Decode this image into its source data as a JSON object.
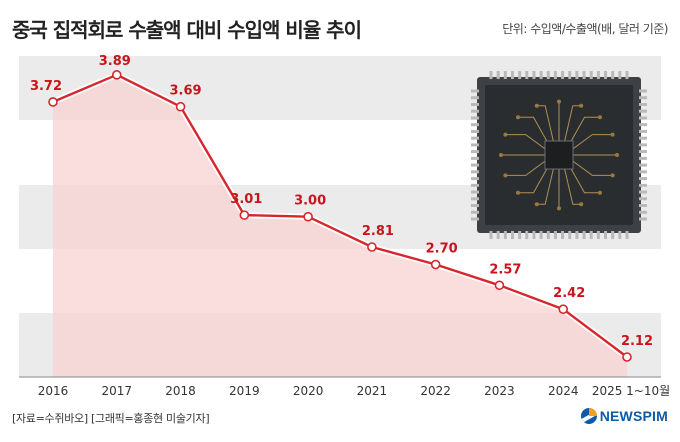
{
  "header": {
    "title": "중국 집적회로 수출액 대비 수입액 비율 추이",
    "unit": "단위: 수입액/수출액(배, 달러 기준)"
  },
  "footer": {
    "source": "[자료=수쥐바오] [그래픽=홍종현 미술기자]",
    "logo_text": "NEWSPIM"
  },
  "colors": {
    "line": "#d7262c",
    "area": "#f8d3d3",
    "band": "#ebebeb",
    "label": "#c8151b",
    "axis": "#888888",
    "chip_body": "#2a2d30",
    "pin": "#b9b9b9"
  },
  "chart_data": {
    "type": "area",
    "title": "중국 집적회로 수출액 대비 수입액 비율 추이",
    "ylabel": "단위: 수입액/수출액(배, 달러 기준)",
    "xlabel": "",
    "categories": [
      "2016",
      "2017",
      "2018",
      "2019",
      "2020",
      "2021",
      "2022",
      "2023",
      "2024",
      "2025 1~10월"
    ],
    "values": [
      3.72,
      3.89,
      3.69,
      3.01,
      3.0,
      2.81,
      2.7,
      2.57,
      2.42,
      2.12
    ],
    "data_labels": [
      "3.72",
      "3.89",
      "3.69",
      "3.01",
      "3.00",
      "2.81",
      "2.70",
      "2.57",
      "2.42",
      "2.12"
    ],
    "ylim": [
      2.0,
      4.0
    ],
    "grid": false,
    "legend": "none"
  }
}
